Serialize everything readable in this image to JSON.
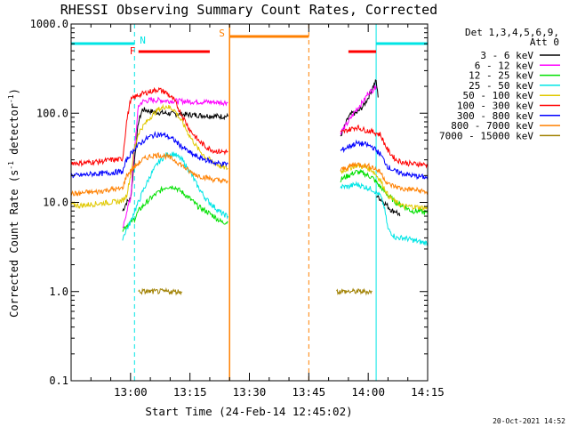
{
  "colors": {
    "background": "#ffffff",
    "axes": "#000000",
    "night": "#00e5e5",
    "flare": "#ff0000",
    "saa": "#ff8000"
  },
  "chart_data": {
    "type": "line",
    "title": "RHESSI Observing Summary Count Rates, Corrected",
    "xlabel": "Start Time (24-Feb-14 12:45:02)",
    "ylabel": "Corrected Count Rate (s-1 detector-1)",
    "ylabel_base": "Corrected Count Rate (s",
    "ylabel_sup1": "-1",
    "ylabel_mid": " detector",
    "ylabel_sup2": "-1",
    "ylabel_end": ")",
    "yscale": "log",
    "xlim_minutes": [
      0,
      90
    ],
    "ylim": [
      0.1,
      1000
    ],
    "x_ticks": [
      {
        "label": "13:00",
        "minute": 15
      },
      {
        "label": "13:15",
        "minute": 30
      },
      {
        "label": "13:30",
        "minute": 45
      },
      {
        "label": "13:45",
        "minute": 60
      },
      {
        "label": "14:00",
        "minute": 75
      },
      {
        "label": "14:15",
        "minute": 90
      }
    ],
    "y_ticks": [
      {
        "label": "1000.0",
        "value": 1000
      },
      {
        "label": "100.0",
        "value": 100
      },
      {
        "label": "10.0",
        "value": 10
      },
      {
        "label": "1.0",
        "value": 1
      },
      {
        "label": "0.1",
        "value": 0.1
      }
    ],
    "legend_header": [
      "Det 1,3,4,5,6,9,",
      "Att 0"
    ],
    "legend": [
      {
        "name": "3 - 6 keV",
        "color": "#000000"
      },
      {
        "name": "6 - 12 keV",
        "color": "#ff00ff"
      },
      {
        "name": "12 - 25 keV",
        "color": "#00e000"
      },
      {
        "name": "25 - 50 keV",
        "color": "#00e5e5"
      },
      {
        "name": "50 - 100 keV",
        "color": "#e0c800"
      },
      {
        "name": "100 - 300 keV",
        "color": "#ff0000"
      },
      {
        "name": "300 - 800 keV",
        "color": "#0000ff"
      },
      {
        "name": "800 - 7000 keV",
        "color": "#ff8000"
      },
      {
        "name": "7000 - 15000 keV",
        "color": "#a08000"
      }
    ],
    "flags": [
      {
        "label": "N",
        "color": "#00e5e5"
      },
      {
        "label": "F",
        "color": "#ff0000"
      },
      {
        "label": "S",
        "color": "#ff8000"
      }
    ],
    "intervals": {
      "night": [
        [
          0,
          16
        ],
        [
          77,
          94
        ]
      ],
      "flare": [
        [
          17,
          35
        ],
        [
          70,
          77
        ]
      ],
      "saa": [
        [
          40,
          60
        ]
      ]
    },
    "series": [
      {
        "name": "3 - 6 keV",
        "color": "#000000",
        "segments": [
          {
            "x": [
              13,
              13.5,
              14,
              15,
              16,
              17,
              18,
              19,
              20,
              22,
              24,
              26,
              28,
              30,
              32,
              34,
              36,
              38,
              39.6
            ],
            "y": [
              8,
              9,
              10,
              11,
              30,
              80,
              110,
              108,
              105,
              102,
              100,
              98,
              97,
              96,
              95,
              94,
              93,
              92,
              92
            ]
          },
          {
            "x": [
              68,
              69,
              70,
              71,
              72,
              73,
              74,
              75,
              76,
              77,
              77.5
            ],
            "y": [
              55,
              70,
              90,
              100,
              100,
              110,
              125,
              150,
              190,
              230,
              150
            ]
          },
          {
            "x": [
              77,
              78,
              79,
              80,
              81,
              82,
              83
            ],
            "y": [
              12,
              11,
              10,
              9,
              8,
              8,
              7
            ]
          }
        ]
      },
      {
        "name": "6 - 12 keV",
        "color": "#ff00ff",
        "segments": [
          {
            "x": [
              13,
              13.5,
              14,
              15,
              16,
              17,
              18,
              20,
              22,
              24,
              26,
              28,
              30,
              32,
              34,
              36,
              38,
              39.6
            ],
            "y": [
              5,
              6,
              8,
              11,
              40,
              120,
              135,
              140,
              140,
              138,
              137,
              136,
              135,
              134,
              134,
              133,
              132,
              132
            ]
          },
          {
            "x": [
              68,
              70,
              72,
              74,
              75,
              76,
              77
            ],
            "y": [
              60,
              80,
              110,
              140,
              170,
              180,
              200
            ]
          }
        ]
      },
      {
        "name": "12 - 25 keV",
        "color": "#00e000",
        "segments": [
          {
            "x": [
              13,
              14,
              15,
              16,
              17,
              18,
              20,
              22,
              24,
              26,
              28,
              30,
              32,
              34,
              36,
              38,
              39.6
            ],
            "y": [
              5,
              5.5,
              6,
              6.5,
              8,
              9,
              11,
              13,
              15,
              15,
              13,
              11,
              9,
              8,
              7,
              6,
              6
            ]
          },
          {
            "x": [
              68,
              70,
              72,
              74,
              76,
              78,
              80,
              82,
              84,
              86,
              88,
              90,
              92
            ],
            "y": [
              18,
              20,
              22,
              21,
              19,
              15,
              12,
              10,
              9,
              8,
              8,
              7.5,
              7
            ]
          }
        ]
      },
      {
        "name": "25 - 50 keV",
        "color": "#00e5e5",
        "segments": [
          {
            "x": [
              13,
              14,
              15,
              16,
              17,
              18,
              20,
              22,
              24,
              26,
              28,
              30,
              32,
              34,
              36,
              38,
              39.6
            ],
            "y": [
              4,
              5,
              6,
              8,
              10,
              13,
              20,
              28,
              34,
              35,
              30,
              22,
              15,
              11,
              9,
              7.5,
              7
            ]
          },
          {
            "x": [
              68,
              70,
              72,
              74,
              76,
              78,
              79,
              80,
              82,
              84,
              86,
              88,
              90,
              92
            ],
            "y": [
              15,
              15,
              16,
              15,
              14,
              12,
              9,
              5,
              4,
              4,
              3.8,
              3.6,
              3.5,
              3.5
            ]
          }
        ]
      },
      {
        "name": "50 - 100 keV",
        "color": "#e0c800",
        "segments": [
          {
            "x": [
              0,
              2,
              4,
              6,
              8,
              10,
              12,
              13,
              14,
              15,
              16,
              17,
              18,
              20,
              22,
              24,
              26,
              28,
              30,
              32,
              34,
              36,
              38,
              39.6
            ],
            "y": [
              9.5,
              9.2,
              9.4,
              9.6,
              9.8,
              10,
              10.2,
              10.5,
              12,
              20,
              40,
              60,
              70,
              90,
              110,
              120,
              110,
              80,
              55,
              40,
              32,
              28,
              25,
              24
            ]
          },
          {
            "x": [
              68,
              70,
              72,
              74,
              76,
              78,
              80,
              82,
              84,
              86,
              88,
              90,
              92
            ],
            "y": [
              22,
              24,
              26,
              25,
              23,
              18,
              12,
              10,
              9,
              9,
              8.8,
              8.6,
              8.5
            ]
          }
        ]
      },
      {
        "name": "100 - 300 keV",
        "color": "#ff0000",
        "segments": [
          {
            "x": [
              0,
              2,
              4,
              6,
              8,
              10,
              12,
              13,
              14,
              15,
              16,
              17,
              18,
              20,
              22,
              24,
              26,
              28,
              30,
              32,
              34,
              36,
              38,
              39.6
            ],
            "y": [
              28,
              27.5,
              28,
              28.5,
              29,
              30,
              30,
              31,
              80,
              140,
              150,
              160,
              165,
              175,
              185,
              170,
              140,
              95,
              65,
              50,
              42,
              38,
              37,
              37
            ]
          },
          {
            "x": [
              68,
              70,
              72,
              74,
              76,
              78,
              80,
              82,
              84,
              86,
              88,
              90,
              92
            ],
            "y": [
              60,
              65,
              70,
              65,
              62,
              58,
              38,
              30,
              28,
              27,
              27,
              26,
              26
            ]
          }
        ]
      },
      {
        "name": "300 - 800 keV",
        "color": "#0000ff",
        "segments": [
          {
            "x": [
              0,
              2,
              4,
              6,
              8,
              10,
              12,
              13,
              14,
              16,
              18,
              20,
              22,
              24,
              26,
              28,
              30,
              32,
              34,
              36,
              38,
              39.6
            ],
            "y": [
              20,
              20,
              20.5,
              21,
              21,
              21.5,
              22,
              22,
              30,
              40,
              48,
              55,
              58,
              56,
              50,
              42,
              36,
              32,
              30,
              28,
              27,
              27
            ]
          },
          {
            "x": [
              68,
              70,
              72,
              74,
              76,
              78,
              80,
              82,
              84,
              86,
              88,
              90,
              92
            ],
            "y": [
              38,
              42,
              46,
              45,
              42,
              35,
              25,
              22,
              21,
              20,
              19.5,
              19,
              19
            ]
          }
        ]
      },
      {
        "name": "800 - 7000 keV",
        "color": "#ff8000",
        "segments": [
          {
            "x": [
              0,
              2,
              4,
              6,
              8,
              10,
              12,
              13,
              14,
              16,
              18,
              20,
              22,
              24,
              26,
              28,
              30,
              32,
              34,
              36,
              38,
              39.6
            ],
            "y": [
              12.5,
              12.5,
              13,
              13,
              13.5,
              14,
              14,
              14.5,
              20,
              25,
              30,
              33,
              34,
              33,
              30,
              26,
              22,
              20,
              19,
              18,
              17.5,
              17
            ]
          },
          {
            "x": [
              68,
              70,
              72,
              74,
              76,
              78,
              80,
              82,
              84,
              86,
              88,
              90,
              92
            ],
            "y": [
              23,
              25,
              27,
              26,
              25,
              22,
              16,
              15,
              14,
              14,
              13.5,
              13,
              13
            ]
          }
        ]
      },
      {
        "name": "7000 - 15000 keV",
        "color": "#a08000",
        "segments": [
          {
            "x": [
              17,
              20,
              22,
              24,
              26,
              28
            ],
            "y": [
              1,
              1,
              1,
              1,
              1,
              1
            ]
          },
          {
            "x": [
              67,
              70,
              72,
              74,
              76
            ],
            "y": [
              1,
              1,
              1,
              1,
              1
            ]
          }
        ]
      }
    ]
  },
  "footer_date": "20-Oct-2021 14:52"
}
